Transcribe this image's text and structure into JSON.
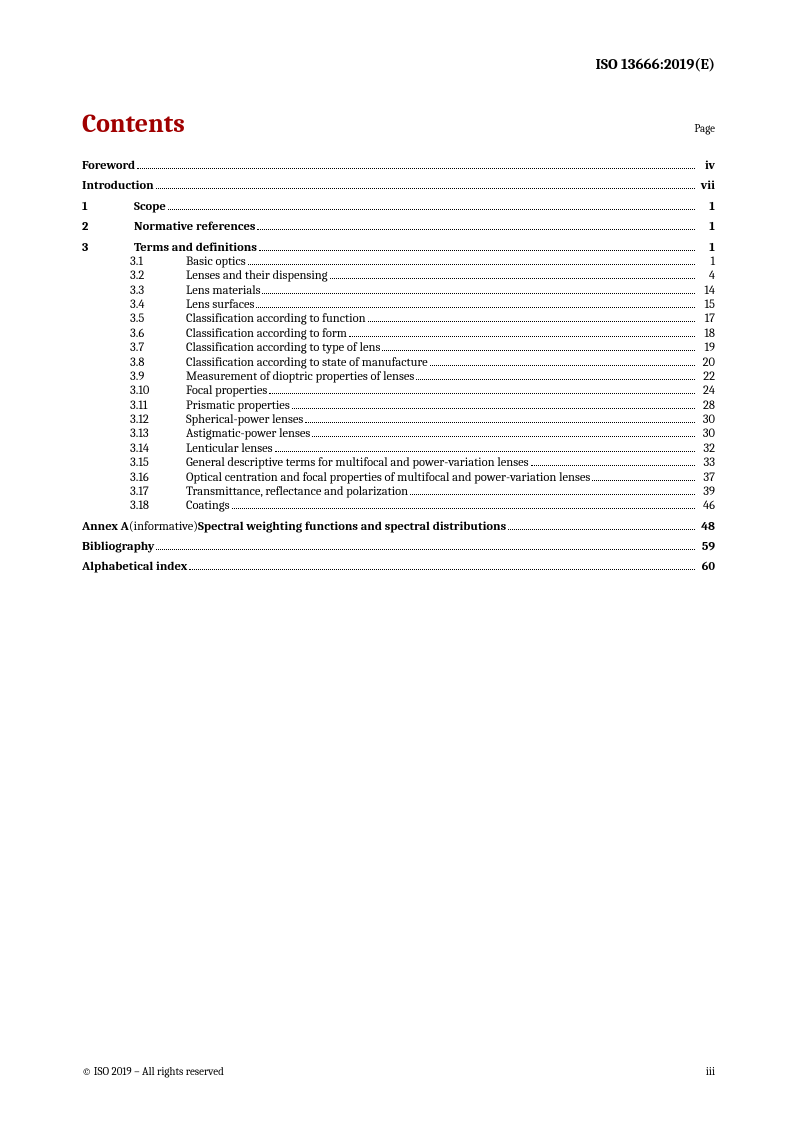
{
  "header": {
    "doc_id": "ISO 13666:2019(E)"
  },
  "contents": {
    "title": "Contents",
    "page_label": "Page"
  },
  "toc": [
    {
      "type": "top",
      "bold": true,
      "title": "Foreword",
      "page": "iv"
    },
    {
      "type": "gap"
    },
    {
      "type": "top",
      "bold": true,
      "title": "Introduction",
      "page": "vii"
    },
    {
      "type": "gap"
    },
    {
      "type": "top",
      "bold": true,
      "num": "1",
      "title": "Scope",
      "page": "1"
    },
    {
      "type": "gap"
    },
    {
      "type": "top",
      "bold": true,
      "num": "2",
      "title": "Normative references",
      "page": "1"
    },
    {
      "type": "gap"
    },
    {
      "type": "top",
      "bold": true,
      "num": "3",
      "title": "Terms and definitions",
      "page": "1"
    },
    {
      "type": "sub",
      "num": "3.1",
      "title": "Basic optics",
      "page": "1"
    },
    {
      "type": "sub",
      "num": "3.2",
      "title": "Lenses and their dispensing",
      "page": "4"
    },
    {
      "type": "sub",
      "num": "3.3",
      "title": "Lens materials",
      "page": "14"
    },
    {
      "type": "sub",
      "num": "3.4",
      "title": "Lens surfaces",
      "page": "15"
    },
    {
      "type": "sub",
      "num": "3.5",
      "title": "Classification according to function",
      "page": "17"
    },
    {
      "type": "sub",
      "num": "3.6",
      "title": "Classification according to form",
      "page": "18"
    },
    {
      "type": "sub",
      "num": "3.7",
      "title": "Classification according to type of lens",
      "page": "19"
    },
    {
      "type": "sub",
      "num": "3.8",
      "title": "Classification according to state of manufacture",
      "page": "20"
    },
    {
      "type": "sub",
      "num": "3.9",
      "title": "Measurement of dioptric properties of lenses",
      "page": "22"
    },
    {
      "type": "sub",
      "num": "3.10",
      "title": "Focal properties",
      "page": "24"
    },
    {
      "type": "sub",
      "num": "3.11",
      "title": "Prismatic properties",
      "page": "28"
    },
    {
      "type": "sub",
      "num": "3.12",
      "title": "Spherical-power lenses",
      "page": "30"
    },
    {
      "type": "sub",
      "num": "3.13",
      "title": "Astigmatic-power lenses",
      "page": "30"
    },
    {
      "type": "sub",
      "num": "3.14",
      "title": "Lenticular lenses",
      "page": "32"
    },
    {
      "type": "sub",
      "num": "3.15",
      "title": "General descriptive terms for multifocal and power-variation lenses",
      "page": "33"
    },
    {
      "type": "sub",
      "num": "3.16",
      "title": "Optical centration and focal properties of multifocal and power-variation lenses",
      "page": "37"
    },
    {
      "type": "sub",
      "num": "3.17",
      "title": "Transmittance, reflectance and polarization",
      "page": "39"
    },
    {
      "type": "sub",
      "num": "3.18",
      "title": "Coatings",
      "page": "46"
    },
    {
      "type": "gap"
    },
    {
      "type": "annex",
      "bold": true,
      "title_bold": "Annex A",
      "title_normal": " (informative) ",
      "title_bold2": "Spectral weighting functions and spectral distributions",
      "page": "48"
    },
    {
      "type": "gap"
    },
    {
      "type": "top",
      "bold": true,
      "title": "Bibliography",
      "page": "59"
    },
    {
      "type": "gap"
    },
    {
      "type": "top",
      "bold": true,
      "title": "Alphabetical index",
      "page": "60"
    }
  ],
  "footer": {
    "copyright": "© ISO 2019 – All rights reserved",
    "page_number": "iii"
  }
}
